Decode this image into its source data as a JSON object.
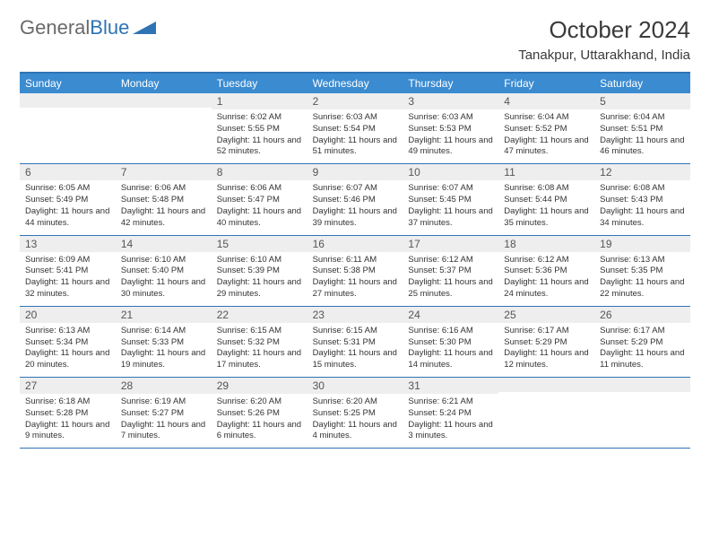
{
  "logo": {
    "text1": "General",
    "text2": "Blue"
  },
  "title": "October 2024",
  "location": "Tanakpur, Uttarakhand, India",
  "colors": {
    "header_bg": "#3b8bd0",
    "header_text": "#ffffff",
    "border": "#2e74b5",
    "daynum_bg": "#eeeeee",
    "logo_gray": "#6a6a6a",
    "logo_blue": "#2e74b5",
    "body_text": "#333333"
  },
  "day_names": [
    "Sunday",
    "Monday",
    "Tuesday",
    "Wednesday",
    "Thursday",
    "Friday",
    "Saturday"
  ],
  "weeks": [
    [
      {
        "n": "",
        "t": ""
      },
      {
        "n": "",
        "t": ""
      },
      {
        "n": "1",
        "t": "Sunrise: 6:02 AM\nSunset: 5:55 PM\nDaylight: 11 hours and 52 minutes."
      },
      {
        "n": "2",
        "t": "Sunrise: 6:03 AM\nSunset: 5:54 PM\nDaylight: 11 hours and 51 minutes."
      },
      {
        "n": "3",
        "t": "Sunrise: 6:03 AM\nSunset: 5:53 PM\nDaylight: 11 hours and 49 minutes."
      },
      {
        "n": "4",
        "t": "Sunrise: 6:04 AM\nSunset: 5:52 PM\nDaylight: 11 hours and 47 minutes."
      },
      {
        "n": "5",
        "t": "Sunrise: 6:04 AM\nSunset: 5:51 PM\nDaylight: 11 hours and 46 minutes."
      }
    ],
    [
      {
        "n": "6",
        "t": "Sunrise: 6:05 AM\nSunset: 5:49 PM\nDaylight: 11 hours and 44 minutes."
      },
      {
        "n": "7",
        "t": "Sunrise: 6:06 AM\nSunset: 5:48 PM\nDaylight: 11 hours and 42 minutes."
      },
      {
        "n": "8",
        "t": "Sunrise: 6:06 AM\nSunset: 5:47 PM\nDaylight: 11 hours and 40 minutes."
      },
      {
        "n": "9",
        "t": "Sunrise: 6:07 AM\nSunset: 5:46 PM\nDaylight: 11 hours and 39 minutes."
      },
      {
        "n": "10",
        "t": "Sunrise: 6:07 AM\nSunset: 5:45 PM\nDaylight: 11 hours and 37 minutes."
      },
      {
        "n": "11",
        "t": "Sunrise: 6:08 AM\nSunset: 5:44 PM\nDaylight: 11 hours and 35 minutes."
      },
      {
        "n": "12",
        "t": "Sunrise: 6:08 AM\nSunset: 5:43 PM\nDaylight: 11 hours and 34 minutes."
      }
    ],
    [
      {
        "n": "13",
        "t": "Sunrise: 6:09 AM\nSunset: 5:41 PM\nDaylight: 11 hours and 32 minutes."
      },
      {
        "n": "14",
        "t": "Sunrise: 6:10 AM\nSunset: 5:40 PM\nDaylight: 11 hours and 30 minutes."
      },
      {
        "n": "15",
        "t": "Sunrise: 6:10 AM\nSunset: 5:39 PM\nDaylight: 11 hours and 29 minutes."
      },
      {
        "n": "16",
        "t": "Sunrise: 6:11 AM\nSunset: 5:38 PM\nDaylight: 11 hours and 27 minutes."
      },
      {
        "n": "17",
        "t": "Sunrise: 6:12 AM\nSunset: 5:37 PM\nDaylight: 11 hours and 25 minutes."
      },
      {
        "n": "18",
        "t": "Sunrise: 6:12 AM\nSunset: 5:36 PM\nDaylight: 11 hours and 24 minutes."
      },
      {
        "n": "19",
        "t": "Sunrise: 6:13 AM\nSunset: 5:35 PM\nDaylight: 11 hours and 22 minutes."
      }
    ],
    [
      {
        "n": "20",
        "t": "Sunrise: 6:13 AM\nSunset: 5:34 PM\nDaylight: 11 hours and 20 minutes."
      },
      {
        "n": "21",
        "t": "Sunrise: 6:14 AM\nSunset: 5:33 PM\nDaylight: 11 hours and 19 minutes."
      },
      {
        "n": "22",
        "t": "Sunrise: 6:15 AM\nSunset: 5:32 PM\nDaylight: 11 hours and 17 minutes."
      },
      {
        "n": "23",
        "t": "Sunrise: 6:15 AM\nSunset: 5:31 PM\nDaylight: 11 hours and 15 minutes."
      },
      {
        "n": "24",
        "t": "Sunrise: 6:16 AM\nSunset: 5:30 PM\nDaylight: 11 hours and 14 minutes."
      },
      {
        "n": "25",
        "t": "Sunrise: 6:17 AM\nSunset: 5:29 PM\nDaylight: 11 hours and 12 minutes."
      },
      {
        "n": "26",
        "t": "Sunrise: 6:17 AM\nSunset: 5:29 PM\nDaylight: 11 hours and 11 minutes."
      }
    ],
    [
      {
        "n": "27",
        "t": "Sunrise: 6:18 AM\nSunset: 5:28 PM\nDaylight: 11 hours and 9 minutes."
      },
      {
        "n": "28",
        "t": "Sunrise: 6:19 AM\nSunset: 5:27 PM\nDaylight: 11 hours and 7 minutes."
      },
      {
        "n": "29",
        "t": "Sunrise: 6:20 AM\nSunset: 5:26 PM\nDaylight: 11 hours and 6 minutes."
      },
      {
        "n": "30",
        "t": "Sunrise: 6:20 AM\nSunset: 5:25 PM\nDaylight: 11 hours and 4 minutes."
      },
      {
        "n": "31",
        "t": "Sunrise: 6:21 AM\nSunset: 5:24 PM\nDaylight: 11 hours and 3 minutes."
      },
      {
        "n": "",
        "t": ""
      },
      {
        "n": "",
        "t": ""
      }
    ]
  ]
}
